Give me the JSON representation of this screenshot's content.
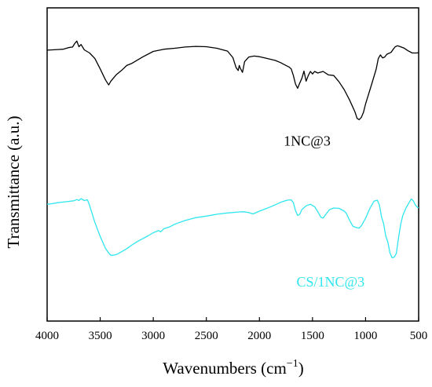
{
  "chart_data": {
    "type": "line",
    "title": "",
    "xlabel": "Wavenumbers (cm",
    "xlabel_sup": "−1",
    "xlabel_close": ")",
    "ylabel": "Transmittance (a.u.)",
    "xlim": [
      4000,
      500
    ],
    "x_reversed": true,
    "ylim": [
      0,
      100
    ],
    "y_ticks_labeled": false,
    "grid": false,
    "legend": "none",
    "x_ticks": [
      4000,
      3500,
      3000,
      2500,
      2000,
      1500,
      1000,
      500
    ],
    "x_tick_labels": [
      "4000",
      "3500",
      "3000",
      "2500",
      "2000",
      "1500",
      "1000",
      "500"
    ],
    "series": [
      {
        "name": "1NC@3",
        "color": "#000000",
        "points": [
          [
            4000,
            86.5
          ],
          [
            3950,
            86.6
          ],
          [
            3900,
            86.7
          ],
          [
            3850,
            86.8
          ],
          [
            3800,
            87.3
          ],
          [
            3760,
            87.5
          ],
          [
            3740,
            88.6
          ],
          [
            3720,
            89.4
          ],
          [
            3700,
            87.6
          ],
          [
            3680,
            88.3
          ],
          [
            3650,
            86.6
          ],
          [
            3600,
            85.6
          ],
          [
            3550,
            83.8
          ],
          [
            3500,
            80.5
          ],
          [
            3450,
            77.0
          ],
          [
            3420,
            75.4
          ],
          [
            3400,
            76.6
          ],
          [
            3350,
            78.6
          ],
          [
            3300,
            80.0
          ],
          [
            3250,
            81.6
          ],
          [
            3200,
            82.3
          ],
          [
            3100,
            84.3
          ],
          [
            3000,
            86.1
          ],
          [
            2900,
            86.8
          ],
          [
            2800,
            87.1
          ],
          [
            2700,
            87.5
          ],
          [
            2600,
            87.7
          ],
          [
            2500,
            87.6
          ],
          [
            2400,
            87.1
          ],
          [
            2300,
            86.2
          ],
          [
            2250,
            84.1
          ],
          [
            2220,
            80.9
          ],
          [
            2200,
            80.0
          ],
          [
            2190,
            81.6
          ],
          [
            2180,
            80.7
          ],
          [
            2160,
            79.4
          ],
          [
            2140,
            82.8
          ],
          [
            2100,
            84.3
          ],
          [
            2050,
            84.6
          ],
          [
            2000,
            84.4
          ],
          [
            1950,
            84.0
          ],
          [
            1900,
            83.6
          ],
          [
            1850,
            83.2
          ],
          [
            1800,
            82.5
          ],
          [
            1750,
            81.6
          ],
          [
            1720,
            81.1
          ],
          [
            1700,
            80.5
          ],
          [
            1680,
            78.4
          ],
          [
            1660,
            75.7
          ],
          [
            1640,
            74.3
          ],
          [
            1620,
            76.0
          ],
          [
            1600,
            77.5
          ],
          [
            1580,
            79.8
          ],
          [
            1560,
            76.6
          ],
          [
            1540,
            78.4
          ],
          [
            1520,
            79.7
          ],
          [
            1500,
            78.9
          ],
          [
            1480,
            79.7
          ],
          [
            1450,
            79.2
          ],
          [
            1400,
            79.7
          ],
          [
            1350,
            78.6
          ],
          [
            1300,
            78.4
          ],
          [
            1250,
            76.4
          ],
          [
            1200,
            73.8
          ],
          [
            1150,
            70.5
          ],
          [
            1100,
            66.8
          ],
          [
            1080,
            64.7
          ],
          [
            1060,
            64.3
          ],
          [
            1040,
            65.0
          ],
          [
            1020,
            66.6
          ],
          [
            1000,
            69.3
          ],
          [
            950,
            74.8
          ],
          [
            900,
            80.4
          ],
          [
            880,
            83.8
          ],
          [
            860,
            85.0
          ],
          [
            840,
            84.0
          ],
          [
            820,
            84.3
          ],
          [
            800,
            85.2
          ],
          [
            760,
            85.8
          ],
          [
            740,
            86.8
          ],
          [
            720,
            87.6
          ],
          [
            700,
            87.9
          ],
          [
            680,
            87.7
          ],
          [
            640,
            87.2
          ],
          [
            600,
            86.3
          ],
          [
            560,
            85.6
          ],
          [
            520,
            85.6
          ],
          [
            500,
            85.7
          ]
        ]
      },
      {
        "name": "CS/1NC@3",
        "color": "#2ee6ee",
        "points": [
          [
            4000,
            37.3
          ],
          [
            3950,
            37.5
          ],
          [
            3900,
            37.8
          ],
          [
            3850,
            38.0
          ],
          [
            3800,
            38.2
          ],
          [
            3750,
            38.4
          ],
          [
            3720,
            38.8
          ],
          [
            3700,
            38.5
          ],
          [
            3680,
            39.1
          ],
          [
            3650,
            38.5
          ],
          [
            3620,
            38.7
          ],
          [
            3600,
            36.9
          ],
          [
            3550,
            31.5
          ],
          [
            3500,
            27.0
          ],
          [
            3450,
            23.2
          ],
          [
            3420,
            21.7
          ],
          [
            3400,
            21.0
          ],
          [
            3380,
            21.0
          ],
          [
            3350,
            21.2
          ],
          [
            3300,
            22.1
          ],
          [
            3250,
            23.1
          ],
          [
            3200,
            24.3
          ],
          [
            3150,
            25.4
          ],
          [
            3100,
            26.3
          ],
          [
            3050,
            27.2
          ],
          [
            3000,
            28.2
          ],
          [
            2950,
            28.9
          ],
          [
            2930,
            28.5
          ],
          [
            2900,
            29.5
          ],
          [
            2850,
            30.0
          ],
          [
            2800,
            30.9
          ],
          [
            2700,
            32.1
          ],
          [
            2600,
            33.0
          ],
          [
            2500,
            33.5
          ],
          [
            2400,
            34.1
          ],
          [
            2300,
            34.5
          ],
          [
            2200,
            34.8
          ],
          [
            2150,
            34.9
          ],
          [
            2100,
            34.6
          ],
          [
            2060,
            34.2
          ],
          [
            2000,
            35.1
          ],
          [
            1900,
            36.4
          ],
          [
            1800,
            37.9
          ],
          [
            1740,
            38.6
          ],
          [
            1700,
            38.7
          ],
          [
            1680,
            37.8
          ],
          [
            1660,
            35.3
          ],
          [
            1640,
            33.7
          ],
          [
            1620,
            34.1
          ],
          [
            1600,
            35.6
          ],
          [
            1560,
            36.8
          ],
          [
            1520,
            37.3
          ],
          [
            1480,
            36.5
          ],
          [
            1450,
            34.9
          ],
          [
            1420,
            33.1
          ],
          [
            1400,
            32.9
          ],
          [
            1380,
            33.8
          ],
          [
            1340,
            35.6
          ],
          [
            1300,
            36.1
          ],
          [
            1250,
            36.0
          ],
          [
            1200,
            35.1
          ],
          [
            1180,
            34.3
          ],
          [
            1150,
            32.1
          ],
          [
            1120,
            30.3
          ],
          [
            1100,
            30.0
          ],
          [
            1080,
            29.8
          ],
          [
            1060,
            29.7
          ],
          [
            1040,
            30.4
          ],
          [
            1000,
            32.8
          ],
          [
            960,
            35.9
          ],
          [
            920,
            38.3
          ],
          [
            890,
            38.6
          ],
          [
            870,
            37.1
          ],
          [
            850,
            33.3
          ],
          [
            830,
            31.1
          ],
          [
            810,
            27.2
          ],
          [
            790,
            25.2
          ],
          [
            770,
            21.7
          ],
          [
            750,
            20.2
          ],
          [
            730,
            20.4
          ],
          [
            710,
            21.6
          ],
          [
            690,
            26.4
          ],
          [
            670,
            30.7
          ],
          [
            650,
            33.6
          ],
          [
            620,
            36.1
          ],
          [
            590,
            37.8
          ],
          [
            570,
            39.0
          ],
          [
            550,
            38.4
          ],
          [
            530,
            37.0
          ],
          [
            510,
            36.3
          ],
          [
            500,
            36.2
          ]
        ]
      }
    ],
    "annotations": [
      {
        "text": "1NC@3",
        "x": 1550,
        "y": 56,
        "color": "#000000"
      },
      {
        "text": "CS/1NC@3",
        "x": 1330,
        "y": 11,
        "color": "#2ee6ee"
      }
    ]
  }
}
